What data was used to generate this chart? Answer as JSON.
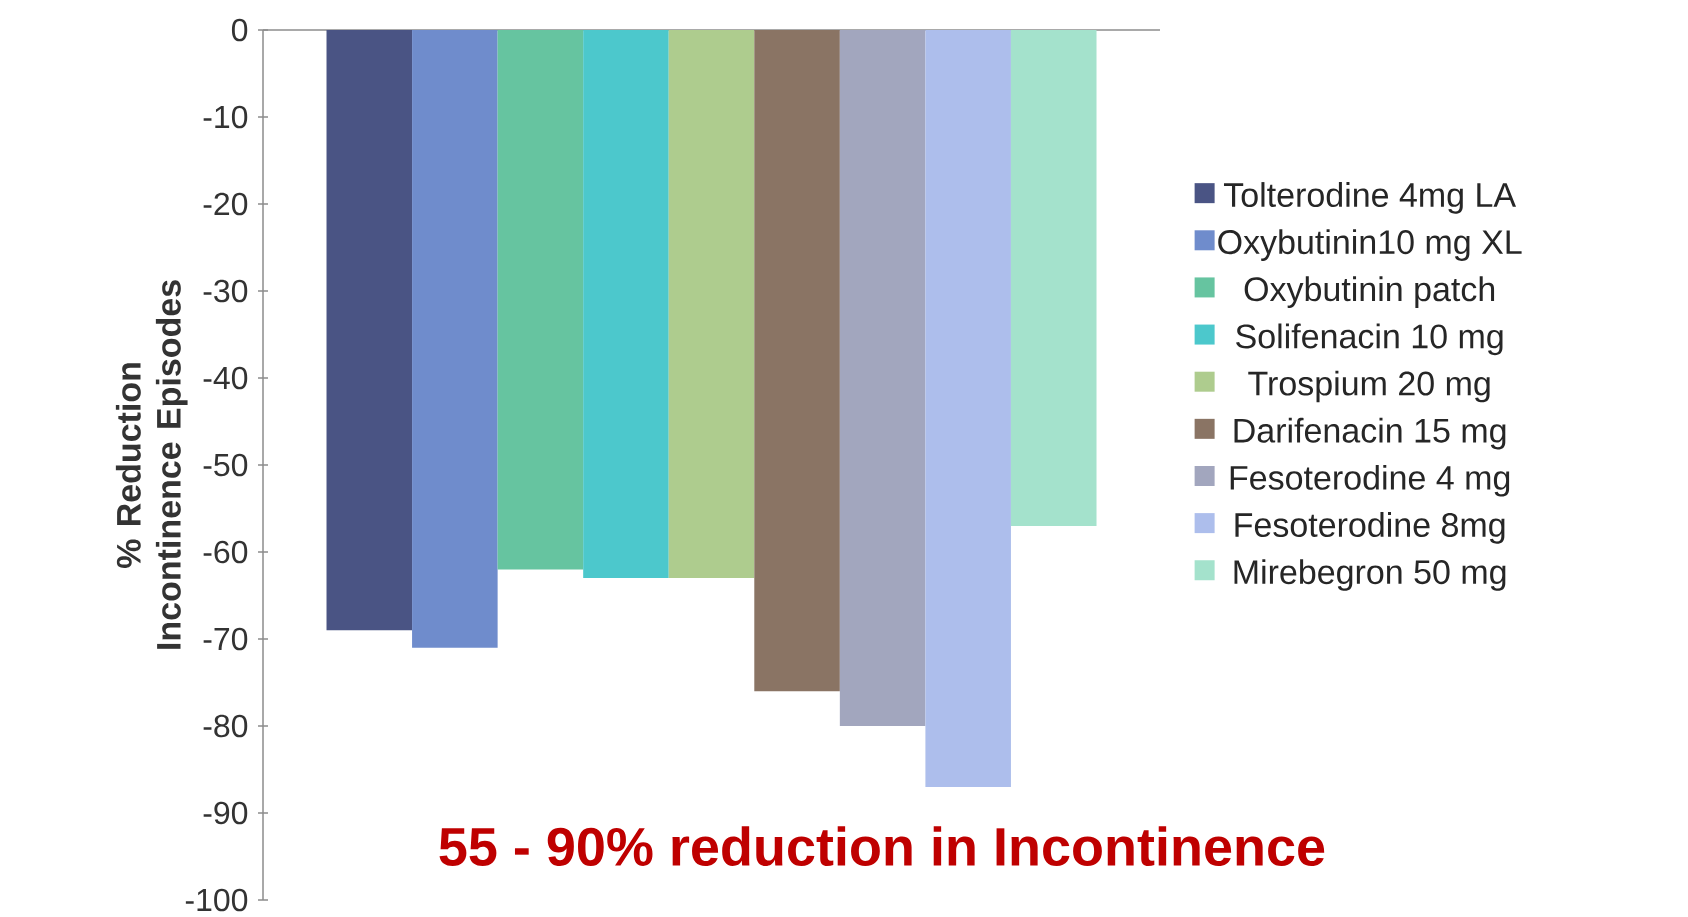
{
  "chart_data": {
    "type": "bar",
    "ylabel": "% Reduction Incontinence Episodes",
    "categories": [
      null
    ],
    "series": [
      {
        "name": "Tolterodine 4mg LA",
        "color": "#4a5484",
        "values": [
          -69
        ]
      },
      {
        "name": "Oxybutinin10 mg XL",
        "color": "#6f8ccc",
        "values": [
          -71
        ]
      },
      {
        "name": "Oxybutinin patch",
        "color": "#66c4a0",
        "values": [
          -62
        ]
      },
      {
        "name": "Solifenacin 10 mg",
        "color": "#4cc8cc",
        "values": [
          -63
        ]
      },
      {
        "name": "Trospium 20 mg",
        "color": "#aecc8e",
        "values": [
          -63
        ]
      },
      {
        "name": "Darifenacin 15 mg",
        "color": "#8a7464",
        "values": [
          -76
        ]
      },
      {
        "name": "Fesoterodine 4 mg",
        "color": "#a2a6be",
        "values": [
          -80
        ]
      },
      {
        "name": "Fesoterodine 8mg",
        "color": "#adbeec",
        "values": [
          -87
        ]
      },
      {
        "name": "Mirebegron 50 mg",
        "color": "#a4e2cc",
        "values": [
          -57
        ]
      }
    ],
    "ylim": [
      -100,
      0
    ],
    "yticks": [
      -100,
      -90,
      -80,
      -70,
      -60,
      -50,
      -40,
      -30,
      -20,
      -10,
      0
    ],
    "legend": "right",
    "grid": false,
    "annotations": [
      "55 - 90% reduction in Incontinence"
    ]
  }
}
